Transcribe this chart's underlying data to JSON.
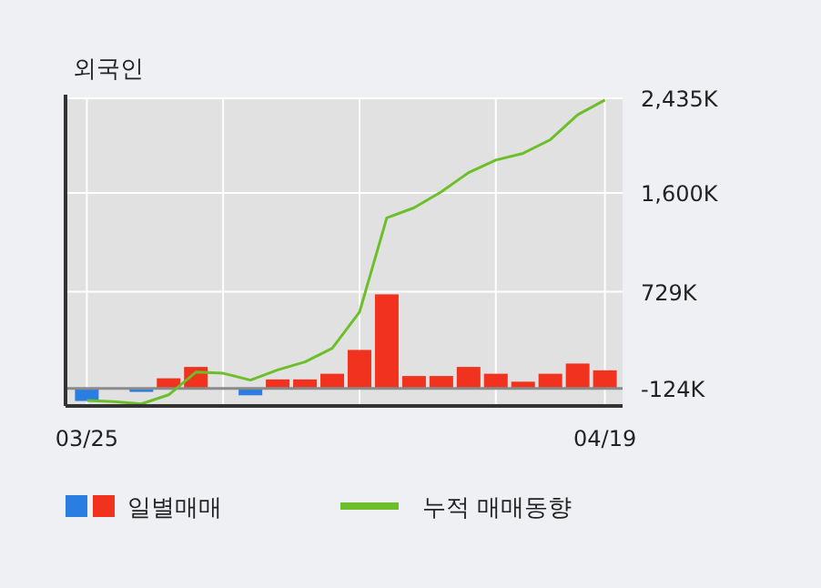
{
  "chart_data": {
    "type": "bar",
    "title": "외국인",
    "categories": [
      "03/25",
      null,
      null,
      null,
      null,
      null,
      null,
      null,
      null,
      null,
      null,
      null,
      null,
      null,
      null,
      null,
      null,
      null,
      null,
      "04/19"
    ],
    "series": [
      {
        "name": "일별매매",
        "base": [
          -124,
          null,
          -124,
          -124,
          -124,
          null,
          -124,
          -124,
          -124,
          -124,
          -124,
          -124,
          -124,
          -124,
          -124,
          -124,
          -124,
          -124,
          -124,
          -124
        ],
        "values": [
          -110,
          null,
          -30,
          90,
          190,
          null,
          -60,
          80,
          80,
          130,
          340,
          830,
          110,
          110,
          190,
          130,
          60,
          130,
          220,
          160
        ],
        "colors": [
          "#2a7de1",
          "#2a7de1",
          "#2a7de1",
          "#f0321e",
          "#f0321e",
          "#f0321e",
          "#2a7de1",
          "#f0321e",
          "#f0321e",
          "#f0321e",
          "#f0321e",
          "#f0321e",
          "#f0321e",
          "#f0321e",
          "#f0321e",
          "#f0321e",
          "#f0321e",
          "#f0321e",
          "#f0321e",
          "#f0321e"
        ]
      },
      {
        "name": "누적 매매동향",
        "type": "line",
        "color": "#6cbf2a",
        "values": [
          -230,
          -240,
          -260,
          -180,
          20,
          10,
          -50,
          40,
          110,
          230,
          550,
          1380,
          1470,
          1610,
          1780,
          1890,
          1950,
          2070,
          2290,
          2420
        ]
      }
    ],
    "ref_lines": [
      {
        "axis": "y",
        "value": -124,
        "color": "#8a8a8a"
      }
    ],
    "ylim": [
      -278,
      2435
    ],
    "yticks": [
      {
        "value": -124,
        "label": "-124K"
      },
      {
        "value": 729,
        "label": "729K"
      },
      {
        "value": 1600,
        "label": "1,600K"
      },
      {
        "value": 2435,
        "label": "2,435K"
      }
    ],
    "grid": true,
    "legend": "bottom"
  }
}
